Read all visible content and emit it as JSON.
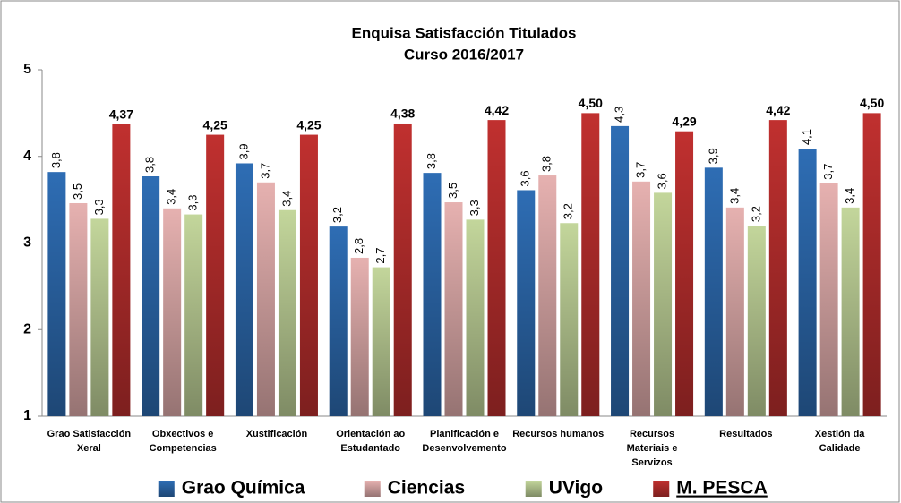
{
  "chart_data": {
    "type": "bar",
    "title": "Enquisa Satisfacción Titulados",
    "subtitle": "Curso 2016/2017",
    "categories": [
      "Grao Satisfacción Xeral",
      "Obxectivos e Competencias",
      "Xustificación",
      "Orientación ao Estudantado",
      "Planificación e Desenvolvemento",
      "Recursos humanos",
      "Recursos Materiais e Servizos",
      "Resultados",
      "Xestión da Calidade"
    ],
    "series": [
      {
        "name": "Grao Química",
        "color": "#2e6db4",
        "values": [
          3.82,
          3.77,
          3.92,
          3.19,
          3.81,
          3.61,
          4.35,
          3.87,
          4.09
        ],
        "value_labels": [
          "3,8",
          "3,8",
          "3,9",
          "3,2",
          "3,8",
          "3,6",
          "4,3",
          "3,9",
          "4,1"
        ]
      },
      {
        "name": "Ciencias",
        "color": "#e6b1b0",
        "values": [
          3.46,
          3.4,
          3.7,
          2.83,
          3.47,
          3.78,
          3.71,
          3.41,
          3.69
        ],
        "value_labels": [
          "3,5",
          "3,4",
          "3,7",
          "2,8",
          "3,5",
          "3,8",
          "3,7",
          "3,4",
          "3,7"
        ]
      },
      {
        "name": "UVigo",
        "color": "#c3d69b",
        "values": [
          3.28,
          3.33,
          3.38,
          2.72,
          3.27,
          3.23,
          3.58,
          3.2,
          3.41
        ],
        "value_labels": [
          "3,3",
          "3,3",
          "3,4",
          "2,7",
          "3,3",
          "3,2",
          "3,6",
          "3,2",
          "3,4"
        ]
      },
      {
        "name": "M. PESCA",
        "color": "#c0302f",
        "values": [
          4.37,
          4.25,
          4.25,
          4.38,
          4.42,
          4.5,
          4.29,
          4.42,
          4.5
        ],
        "value_labels": [
          "4,37",
          "4,25",
          "4,25",
          "4,38",
          "4,42",
          "4,50",
          "4,29",
          "4,42",
          "4,50"
        ]
      }
    ],
    "ylim": [
      1,
      5
    ],
    "yticks": [
      1,
      2,
      3,
      4,
      5
    ],
    "grid": false,
    "legend": "bottom"
  }
}
